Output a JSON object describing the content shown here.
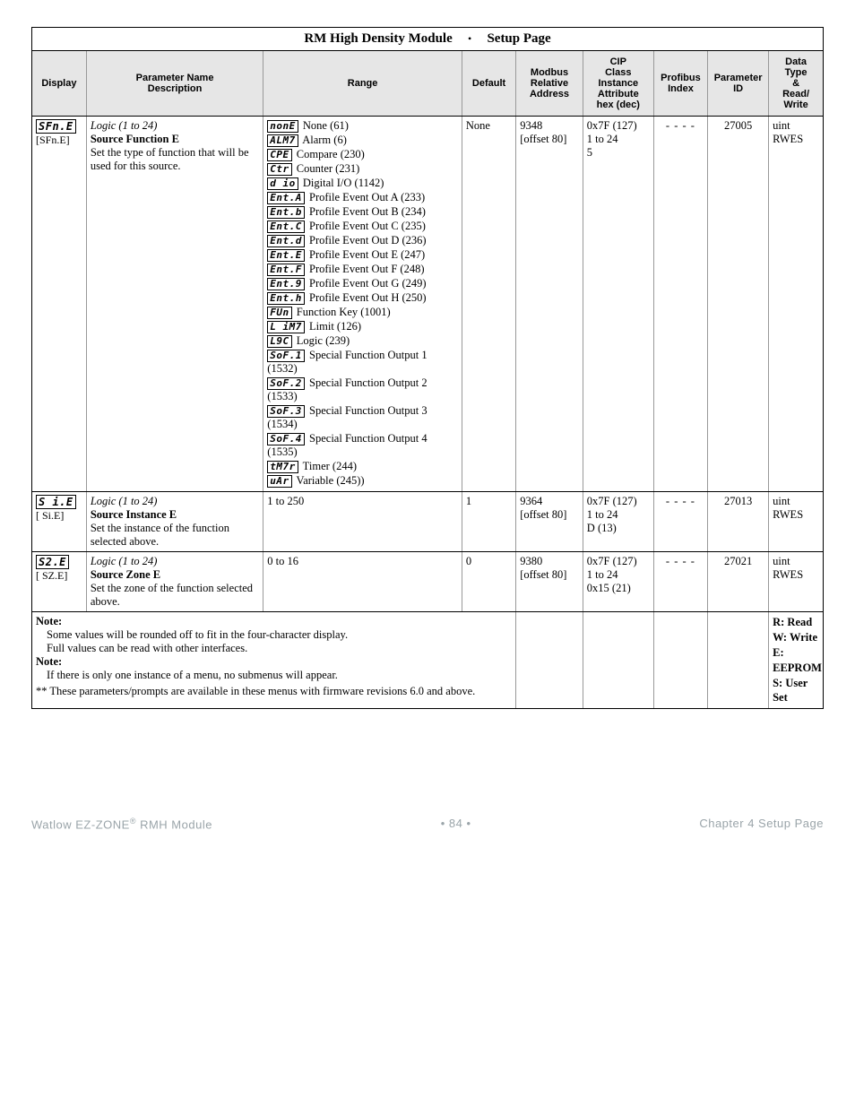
{
  "title": {
    "left": "RM High Density Module",
    "bullet": "•",
    "right": "Setup Page"
  },
  "headers": {
    "display": "Display",
    "param": "Parameter Name\nDescription",
    "range": "Range",
    "default": "Default",
    "modbus": "Modbus\nRelative\nAddress",
    "cip": "CIP\nClass\nInstance\nAttribute\nhex (dec)",
    "profibus": "Profibus\nIndex",
    "pid": "Parameter\nID",
    "dt": "Data\nType\n&\nRead/\nWrite"
  },
  "rows": [
    {
      "display_seg": "SFn.E",
      "display_sub": "[SFn.E]",
      "logic": "Logic (1 to 24)",
      "pname": "Source Function E",
      "pdesc": "Set the type of function that will be used for this source.",
      "range_items": [
        {
          "seg": "nonE",
          "txt": "None (61)"
        },
        {
          "seg": "ALM7",
          "txt": "Alarm (6)"
        },
        {
          "seg": "CPE",
          "txt": "Compare (230)"
        },
        {
          "seg": "Ctr",
          "txt": "Counter (231)"
        },
        {
          "seg": "d io",
          "txt": "Digital I/O (1142)"
        },
        {
          "seg": "Ent.A",
          "txt": "Profile Event Out A (233)"
        },
        {
          "seg": "Ent.b",
          "txt": "Profile Event Out B (234)"
        },
        {
          "seg": "Ent.C",
          "txt": "Profile Event Out C (235)"
        },
        {
          "seg": "Ent.d",
          "txt": "Profile Event Out D (236)"
        },
        {
          "seg": "Ent.E",
          "txt": "Profile Event Out E (247)"
        },
        {
          "seg": "Ent.F",
          "txt": "Profile Event Out F (248)"
        },
        {
          "seg": "Ent.9",
          "txt": "Profile Event Out G (249)"
        },
        {
          "seg": "Ent.h",
          "txt": "Profile Event Out H (250)"
        },
        {
          "seg": "FUn",
          "txt": "Function Key (1001)"
        },
        {
          "seg": "L iM7",
          "txt": "Limit (126)"
        },
        {
          "seg": "L9C",
          "txt": "Logic (239)"
        },
        {
          "seg": "SoF.1",
          "txt": "Special Function Output 1 (1532)"
        },
        {
          "seg": "SoF.2",
          "txt": "Special Function Output 2 (1533)"
        },
        {
          "seg": "SoF.3",
          "txt": "Special Function Output 3 (1534)"
        },
        {
          "seg": "SoF.4",
          "txt": "Special Function Output 4 (1535)"
        },
        {
          "seg": "tM7r",
          "txt": "Timer (244)"
        },
        {
          "seg": "uAr",
          "txt": "Variable (245))"
        }
      ],
      "default": "None",
      "modbus": "9348\n[offset 80]",
      "cip": "0x7F (127)\n1 to 24\n5",
      "profibus": "- - - -",
      "pid": "27005",
      "dt": "uint\nRWES"
    },
    {
      "display_seg": " S i.E",
      "display_sub": "[ Si.E]",
      "logic": "Logic (1 to 24)",
      "pname": "Source Instance E",
      "pdesc": "Set the instance of the function selected above.",
      "range_plain": "1 to 250",
      "default": "1",
      "modbus": "9364\n[offset 80]",
      "cip": "0x7F (127)\n1 to 24\nD (13)",
      "profibus": "- - - -",
      "pid": "27013",
      "dt": "uint\nRWES"
    },
    {
      "display_seg": " S2.E",
      "display_sub": "[ SZ.E]",
      "logic": "Logic (1 to 24)",
      "pname": "Source Zone E",
      "pdesc": "Set the zone of the function selected above.",
      "range_plain": "0 to 16",
      "default": "0",
      "modbus": "9380\n[offset 80]",
      "cip": "0x7F (127)\n1 to 24\n0x15 (21)",
      "profibus": "- - - -",
      "pid": "27021",
      "dt": "uint\nRWES"
    }
  ],
  "note": {
    "h1": "Note:",
    "l1": "Some values will be rounded off to fit in the four-character display.",
    "l2": "Full values can be read with other interfaces.",
    "h2": "Note:",
    "l3": "If there is only one instance of a menu, no submenus will appear.",
    "l4": "** These parameters/prompts are available in these menus with firmware revisions 6.0 and above."
  },
  "legend": {
    "a": "R: Read",
    "b": "W: Write",
    "c": "E: EEPROM",
    "d": "S: User",
    "e": "Set"
  },
  "footer": {
    "left1": "Watlow EZ-ZONE",
    "left2": "RMH Module",
    "mid": "•  84  •",
    "right": "Chapter 4 Setup Page"
  }
}
